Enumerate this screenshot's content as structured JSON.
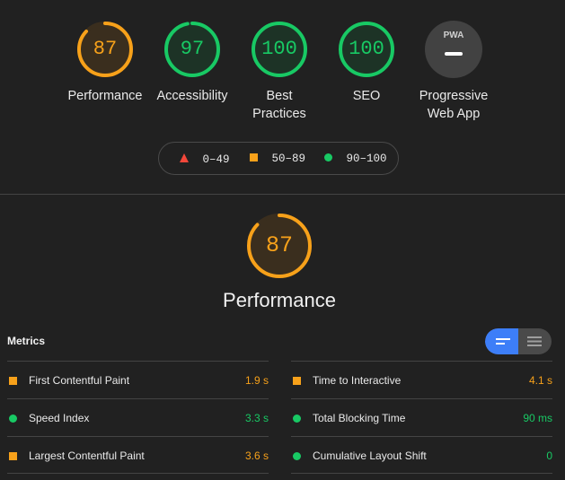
{
  "colors": {
    "orange": "#f7a11a",
    "green": "#18c964",
    "red": "#f4473a",
    "blue_toggle": "#3d7ef8"
  },
  "categories": [
    {
      "score": "87",
      "label": "Performance",
      "status": "average",
      "score_fraction": 0.87
    },
    {
      "score": "97",
      "label": "Accessibility",
      "status": "pass",
      "score_fraction": 0.97
    },
    {
      "score": "100",
      "label": "Best Practices",
      "status": "pass",
      "score_fraction": 1.0
    },
    {
      "score": "100",
      "label": "SEO",
      "status": "pass",
      "score_fraction": 1.0
    },
    {
      "score": "",
      "label": "Progressive Web App",
      "status": "na",
      "badge": "PWA"
    }
  ],
  "legend": [
    {
      "icon": "triangle-icon",
      "range": "0–49"
    },
    {
      "icon": "square-icon",
      "range": "50–89"
    },
    {
      "icon": "circle-icon",
      "range": "90–100"
    }
  ],
  "performance": {
    "score": "87",
    "score_fraction": 0.87,
    "title": "Performance"
  },
  "metrics": {
    "title": "Metrics",
    "items": [
      {
        "label": "First Contentful Paint",
        "value": "1.9 s",
        "status": "average"
      },
      {
        "label": "Time to Interactive",
        "value": "4.1 s",
        "status": "average"
      },
      {
        "label": "Speed Index",
        "value": "3.3 s",
        "status": "pass"
      },
      {
        "label": "Total Blocking Time",
        "value": "90 ms",
        "status": "pass"
      },
      {
        "label": "Largest Contentful Paint",
        "value": "3.6 s",
        "status": "average"
      },
      {
        "label": "Cumulative Layout Shift",
        "value": "0",
        "status": "pass"
      }
    ]
  },
  "view_toggle": {
    "active": "compact",
    "icons": [
      "compact-view-icon",
      "expanded-view-icon"
    ]
  }
}
